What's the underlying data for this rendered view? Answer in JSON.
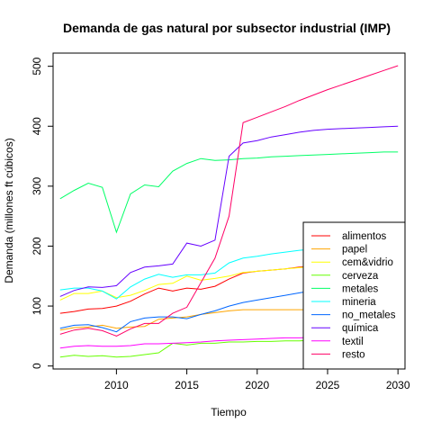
{
  "chart_data": {
    "type": "line",
    "title": "Demanda de gas natural por subsector industrial (IMP)",
    "xlabel": "Tiempo",
    "ylabel": "Demanda (millones ft cúbicos)",
    "xlim": [
      2005.5,
      2030.5
    ],
    "ylim": [
      -5,
      522
    ],
    "x_ticks": [
      2010,
      2015,
      2020,
      2025,
      2030
    ],
    "y_ticks": [
      0,
      100,
      200,
      300,
      400,
      500
    ],
    "grid": false,
    "legend_position": "bottom-right",
    "x": [
      2006,
      2007,
      2008,
      2009,
      2010,
      2011,
      2012,
      2013,
      2014,
      2015,
      2016,
      2017,
      2018,
      2019,
      2020,
      2021,
      2022,
      2023,
      2024,
      2025,
      2026,
      2027,
      2028,
      2029,
      2030
    ],
    "series": [
      {
        "name": "alimentos",
        "color": "#ff0000",
        "values": [
          88,
          91,
          95,
          96,
          100,
          108,
          120,
          130,
          125,
          130,
          128,
          133,
          145,
          155,
          158,
          160,
          162,
          165,
          167,
          169,
          171,
          173,
          175,
          177,
          179
        ]
      },
      {
        "name": "papel",
        "color": "#ffa500",
        "values": [
          60,
          64,
          65,
          68,
          63,
          65,
          66,
          78,
          80,
          82,
          86,
          89,
          92,
          94,
          94,
          94,
          94,
          94,
          94,
          94,
          94,
          94,
          94,
          94,
          94
        ]
      },
      {
        "name": "cem&vidrio",
        "color": "#ffff00",
        "values": [
          110,
          121,
          121,
          125,
          114,
          118,
          126,
          136,
          138,
          150,
          143,
          146,
          150,
          156,
          158,
          160,
          162,
          164,
          166,
          168,
          170,
          172,
          174,
          176,
          178
        ]
      },
      {
        "name": "cerveza",
        "color": "#66ff00",
        "values": [
          15,
          18,
          16,
          17,
          15,
          16,
          19,
          22,
          38,
          35,
          38,
          38,
          40,
          40,
          41,
          41,
          42,
          42,
          43,
          43,
          44,
          44,
          45,
          45,
          46
        ]
      },
      {
        "name": "metales",
        "color": "#00ff66",
        "values": [
          279,
          293,
          305,
          298,
          223,
          287,
          302,
          299,
          325,
          338,
          346,
          343,
          344,
          346,
          347,
          349,
          350,
          351,
          352,
          353,
          354,
          355,
          356,
          357,
          357
        ]
      },
      {
        "name": "mineria",
        "color": "#00ffff",
        "values": [
          127,
          130,
          130,
          125,
          112,
          132,
          145,
          153,
          148,
          152,
          152,
          155,
          172,
          180,
          183,
          187,
          190,
          193,
          195,
          197,
          199,
          201,
          203,
          205,
          207
        ]
      },
      {
        "name": "no_metales",
        "color": "#0066ff",
        "values": [
          63,
          68,
          69,
          64,
          57,
          74,
          80,
          82,
          82,
          79,
          86,
          92,
          100,
          106,
          110,
          114,
          118,
          122,
          126,
          130,
          134,
          138,
          142,
          146,
          150
        ]
      },
      {
        "name": "química",
        "color": "#6600ff",
        "values": [
          116,
          126,
          132,
          131,
          134,
          156,
          165,
          167,
          170,
          205,
          200,
          210,
          350,
          372,
          376,
          382,
          386,
          390,
          393,
          395,
          396,
          397,
          398,
          399,
          400
        ]
      },
      {
        "name": "textil",
        "color": "#ff00ff",
        "values": [
          30,
          33,
          34,
          33,
          33,
          34,
          37,
          37,
          38,
          39,
          40,
          42,
          43,
          44,
          45,
          46,
          47,
          47,
          48,
          48,
          49,
          49,
          50,
          50,
          51
        ]
      },
      {
        "name": "resto",
        "color": "#ff0066",
        "values": [
          53,
          60,
          63,
          59,
          50,
          62,
          71,
          71,
          88,
          98,
          139,
          180,
          250,
          406,
          415,
          424,
          433,
          443,
          452,
          461,
          469,
          477,
          485,
          493,
          501
        ]
      }
    ]
  }
}
